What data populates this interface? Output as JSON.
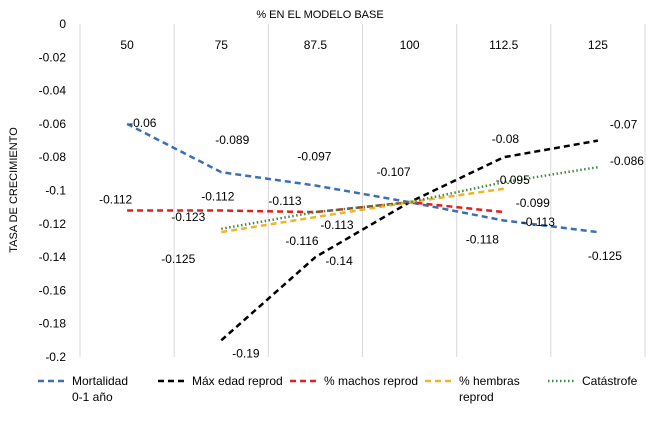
{
  "chart_data": {
    "type": "line",
    "title": "",
    "xlabel": "% EN EL MODELO BASE",
    "ylabel": "TASA DE CRECIMIENTO",
    "x_ticks": [
      "50",
      "75",
      "87.5",
      "100",
      "112.5",
      "125"
    ],
    "y_ticks": [
      "0",
      "-0.02",
      "-0.04",
      "-0.06",
      "-0.08",
      "-0.1",
      "-0.12",
      "-0.14",
      "-0.16",
      "-0.18",
      "-0.2"
    ],
    "ylim": [
      -0.2,
      0
    ],
    "x_axis_position": "top",
    "grid": "vertical",
    "legend_position": "bottom",
    "series": [
      {
        "name": "Mortalidad 0-1 año",
        "name_lines": [
          "Mortalidad",
          "0-1 año"
        ],
        "color": "#3a6fb5",
        "dash": "dashed",
        "x": [
          50,
          75,
          87.5,
          100,
          112.5,
          125
        ],
        "values": [
          -0.06,
          -0.089,
          -0.097,
          -0.107,
          -0.118,
          -0.125
        ],
        "labels": [
          "-0.06",
          "-0.089",
          "-0.097",
          "-0.107",
          "-0.118",
          "-0.125"
        ]
      },
      {
        "name": "Máx edad reprod",
        "name_lines": [
          "Máx edad reprod"
        ],
        "color": "#000000",
        "dash": "dashed",
        "x": [
          75,
          87.5,
          100,
          112.5,
          125
        ],
        "values": [
          -0.19,
          -0.14,
          -0.107,
          -0.08,
          -0.07
        ],
        "labels": [
          "-0.19",
          "-0.14",
          "",
          "-0.08",
          "-0.07"
        ]
      },
      {
        "name": "% machos reprod",
        "name_lines": [
          "% machos reprod"
        ],
        "color": "#e02020",
        "dash": "dashed",
        "x": [
          50,
          75,
          87.5,
          100,
          112.5
        ],
        "values": [
          -0.112,
          -0.112,
          -0.113,
          -0.107,
          -0.113
        ],
        "labels": [
          "-0.112",
          "-0.112",
          "-0.113",
          "",
          "-0.113"
        ]
      },
      {
        "name": "% hembras reprod",
        "name_lines": [
          "% hembras",
          "reprod"
        ],
        "color": "#f4b12a",
        "dash": "dashed",
        "x": [
          75,
          87.5,
          100,
          112.5
        ],
        "values": [
          -0.125,
          -0.116,
          -0.107,
          -0.099
        ],
        "labels": [
          "-0.125",
          "-0.116",
          "",
          "-0.099"
        ]
      },
      {
        "name": "Catástrofe",
        "name_lines": [
          "Catástrofe"
        ],
        "color": "#3e8a3e",
        "dash": "dotted",
        "x": [
          75,
          87.5,
          100,
          112.5,
          125
        ],
        "values": [
          -0.123,
          -0.113,
          -0.107,
          -0.095,
          -0.086
        ],
        "labels": [
          "-0.123",
          "-0.113",
          "",
          "-0.095",
          "-0.086"
        ]
      }
    ]
  }
}
